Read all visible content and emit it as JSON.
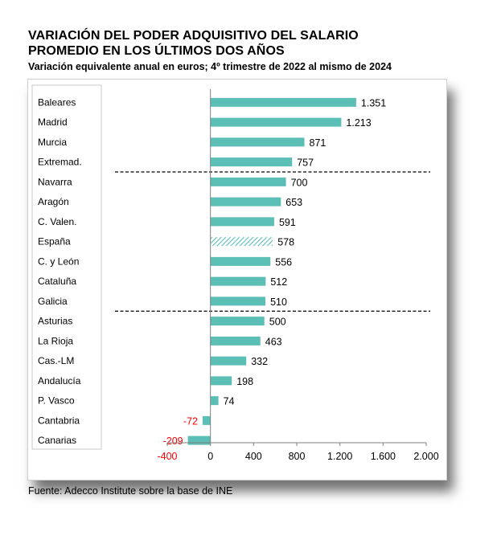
{
  "title_line1": "VARIACIÓN DEL PODER ADQUISITIVO DEL SALARIO",
  "title_line2": "PROMEDIO EN LOS ÚLTIMOS DOS AÑOS",
  "subtitle": "Variación equivalente anual en euros; 4º trimestre de 2022 al mismo de 2024",
  "source": "Fuente: Adecco Institute sobre la base de INE",
  "colors": {
    "bar": "#5bbfb5",
    "negative_label": "#ff0000",
    "text": "#000000"
  },
  "chart_data": {
    "type": "bar",
    "orientation": "horizontal",
    "title": "VARIACIÓN DEL PODER ADQUISITIVO DEL SALARIO PROMEDIO EN LOS ÚLTIMOS DOS AÑOS",
    "categories": [
      "Baleares",
      "Madrid",
      "Murcia",
      "Extremad.",
      "Navarra",
      "Aragón",
      "C. Valen.",
      "España",
      "C. y León",
      "Cataluña",
      "Galicia",
      "Asturias",
      "La Rioja",
      "Cas.-LM",
      "Andalucía",
      "P. Vasco",
      "Cantabria",
      "Canarias"
    ],
    "values": [
      1351,
      1213,
      871,
      757,
      700,
      653,
      591,
      578,
      556,
      512,
      510,
      500,
      463,
      332,
      198,
      74,
      -72,
      -209
    ],
    "value_labels": [
      "1.351",
      "1.213",
      "871",
      "757",
      "700",
      "653",
      "591",
      "578",
      "556",
      "512",
      "510",
      "500",
      "463",
      "332",
      "198",
      "74",
      "-72",
      "-209"
    ],
    "highlight_category": "España",
    "xlim": [
      -400,
      2000
    ],
    "xticks": [
      -400,
      0,
      400,
      800,
      1200,
      1600,
      2000
    ],
    "xtick_labels": [
      "-400",
      "0",
      "400",
      "800",
      "1.200",
      "1.600",
      "2.000"
    ],
    "dashed_separators_after": [
      "Extremad.",
      "Galicia"
    ],
    "xlabel": "",
    "ylabel": ""
  }
}
